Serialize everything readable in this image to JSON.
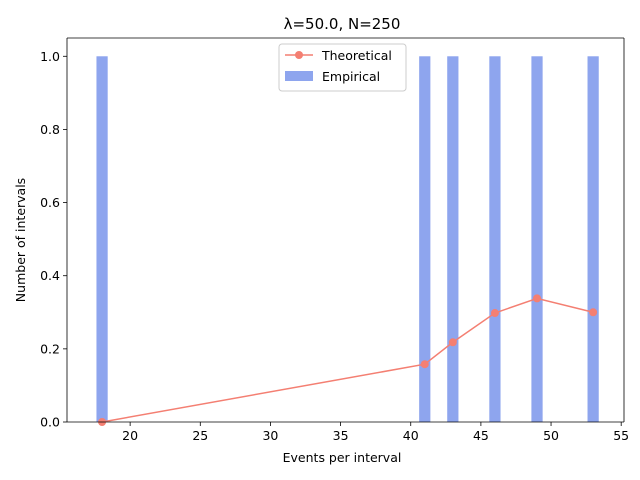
{
  "chart_data": {
    "type": "bar",
    "title": "λ=50.0, N=250",
    "xlabel": "Events per interval",
    "ylabel": "Number of intervals",
    "xlim": [
      15.5,
      55.2
    ],
    "ylim": [
      0,
      1.05
    ],
    "x_ticks": [
      20,
      25,
      30,
      35,
      40,
      45,
      50,
      55
    ],
    "y_ticks": [
      0.0,
      0.2,
      0.4,
      0.6,
      0.8,
      1.0
    ],
    "x_tick_labels": [
      "20",
      "25",
      "30",
      "35",
      "40",
      "45",
      "50",
      "55"
    ],
    "y_tick_labels": [
      "0.0",
      "0.2",
      "0.4",
      "0.6",
      "0.8",
      "1.0"
    ],
    "bar_width": 0.8,
    "grid": false,
    "legend_position": "top-center",
    "series": [
      {
        "name": "Empirical",
        "type": "bar",
        "color": "#8ea5ee",
        "x": [
          18,
          41,
          43,
          46,
          49,
          53
        ],
        "values": [
          1,
          1,
          1,
          1,
          1,
          1
        ]
      },
      {
        "name": "Theoretical",
        "type": "line",
        "color": "#f47f72",
        "marker": "circle",
        "x": [
          18,
          41,
          43,
          46,
          49,
          53
        ],
        "values": [
          0.0,
          0.158,
          0.218,
          0.298,
          0.338,
          0.3
        ]
      }
    ]
  }
}
